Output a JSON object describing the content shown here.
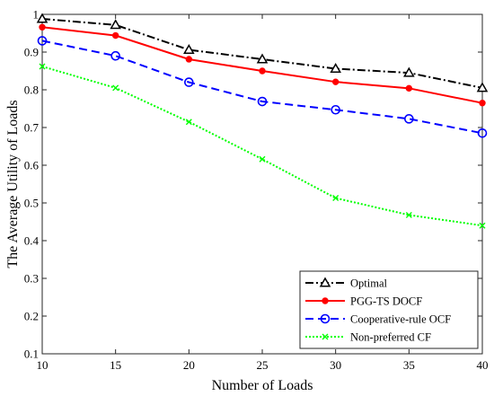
{
  "chart_data": {
    "type": "line",
    "xlabel": "Number of Loads",
    "ylabel": "The Average Utility of Loads",
    "xlim": [
      10,
      40
    ],
    "ylim": [
      0.1,
      1.0
    ],
    "xticks": [
      "10",
      "15",
      "20",
      "25",
      "30",
      "35",
      "40"
    ],
    "yticks": [
      "0.1",
      "0.2",
      "0.3",
      "0.4",
      "0.5",
      "0.6",
      "0.7",
      "0.8",
      "0.9",
      "1"
    ],
    "grid": false,
    "legend_position": "bottom-right",
    "x": [
      10,
      15,
      20,
      25,
      30,
      35,
      40
    ],
    "series": [
      {
        "name": "Optimal",
        "values": [
          0.988,
          0.972,
          0.906,
          0.881,
          0.856,
          0.845,
          0.805
        ],
        "color": "#000000",
        "line_style": "dash-dot",
        "marker": "triangle"
      },
      {
        "name": "PGG-TS DOCF",
        "values": [
          0.966,
          0.944,
          0.881,
          0.85,
          0.821,
          0.804,
          0.765
        ],
        "color": "#ff0000",
        "line_style": "solid",
        "marker": "filled-circle"
      },
      {
        "name": "Cooperative-rule OCF",
        "values": [
          0.93,
          0.89,
          0.82,
          0.769,
          0.747,
          0.723,
          0.685
        ],
        "color": "#0000ff",
        "line_style": "dashed",
        "marker": "open-circle"
      },
      {
        "name": "Non-preferred CF",
        "values": [
          0.862,
          0.805,
          0.715,
          0.616,
          0.513,
          0.468,
          0.44
        ],
        "color": "#00ff00",
        "line_style": "dotted",
        "marker": "x"
      }
    ]
  }
}
